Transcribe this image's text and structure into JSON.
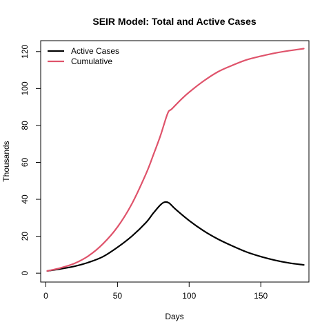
{
  "chart_data": {
    "type": "line",
    "title": "SEIR Model: Total and Active Cases",
    "xlabel": "Days",
    "ylabel": "Thousands",
    "xlim": [
      -3.6,
      183.6
    ],
    "ylim": [
      -4.8,
      125.9
    ],
    "xticks": [
      0,
      50,
      100,
      150
    ],
    "yticks": [
      0,
      20,
      40,
      60,
      80,
      100,
      120
    ],
    "grid": false,
    "legend_position": "top-left",
    "series": [
      {
        "name": "Active Cases",
        "color": "#000000",
        "points": [
          [
            1,
            1.2
          ],
          [
            10,
            2.3
          ],
          [
            20,
            3.7
          ],
          [
            30,
            5.9
          ],
          [
            40,
            9.0
          ],
          [
            50,
            14.0
          ],
          [
            60,
            20.0
          ],
          [
            70,
            27.5
          ],
          [
            75,
            32.5
          ],
          [
            80,
            37.0
          ],
          [
            83,
            38.5
          ],
          [
            86,
            38.0
          ],
          [
            90,
            35.0
          ],
          [
            100,
            28.5
          ],
          [
            110,
            23.0
          ],
          [
            120,
            18.5
          ],
          [
            130,
            14.8
          ],
          [
            140,
            11.5
          ],
          [
            150,
            9.0
          ],
          [
            160,
            7.0
          ],
          [
            170,
            5.5
          ],
          [
            180,
            4.5
          ]
        ]
      },
      {
        "name": "Cumulative",
        "color": "#df536b",
        "points": [
          [
            1,
            1.2
          ],
          [
            10,
            2.8
          ],
          [
            20,
            5.3
          ],
          [
            30,
            9.5
          ],
          [
            40,
            16.0
          ],
          [
            50,
            25.0
          ],
          [
            60,
            37.5
          ],
          [
            70,
            54.0
          ],
          [
            75,
            64.0
          ],
          [
            80,
            74.5
          ],
          [
            85,
            86.5
          ],
          [
            88,
            89.0
          ],
          [
            95,
            94.5
          ],
          [
            100,
            98.0
          ],
          [
            110,
            104.0
          ],
          [
            120,
            109.0
          ],
          [
            130,
            112.5
          ],
          [
            140,
            115.5
          ],
          [
            150,
            117.5
          ],
          [
            160,
            119.2
          ],
          [
            170,
            120.5
          ],
          [
            180,
            121.6
          ]
        ]
      }
    ]
  }
}
